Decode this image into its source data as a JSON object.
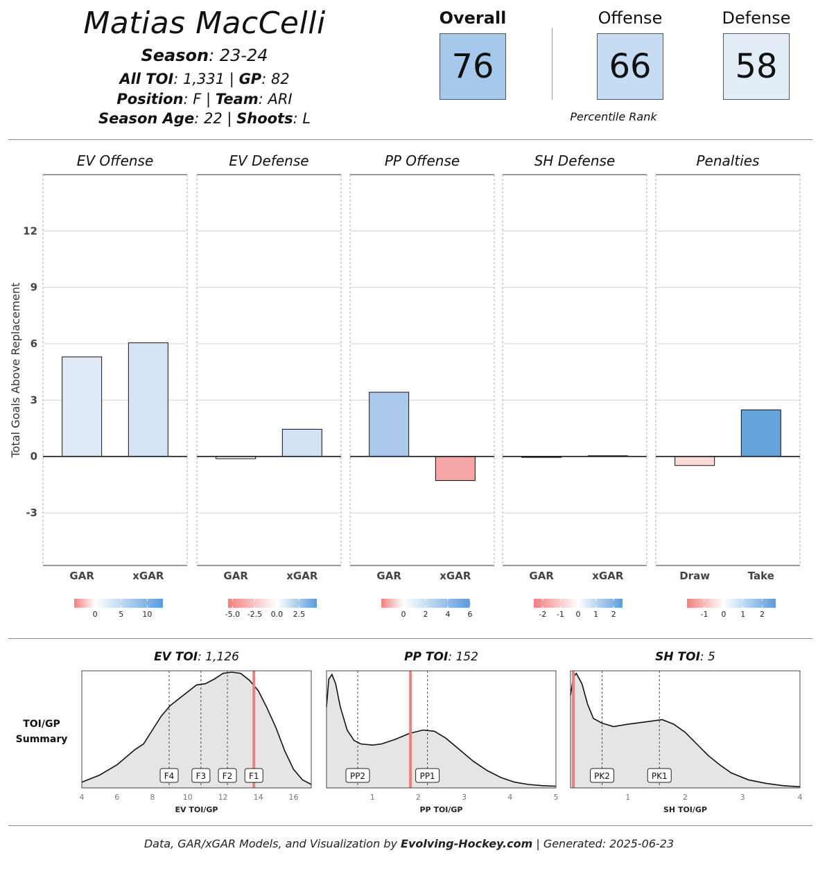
{
  "header": {
    "player_name": "Matias MacCelli",
    "season_label": "Season",
    "season_value": ": 23-24",
    "toi_label": "All TOI",
    "toi_value": ": 1,331 | ",
    "gp_label": "GP",
    "gp_value": ": 82",
    "position_label": "Position",
    "position_value": ": F | ",
    "team_label": "Team",
    "team_value": ": ARI",
    "age_label": "Season Age",
    "age_value": ": 22 | ",
    "shoots_label": "Shoots",
    "shoots_value": ": L"
  },
  "ranks": {
    "overall_label": "Overall",
    "overall_value": "76",
    "offense_label": "Offense",
    "offense_value": "66",
    "defense_label": "Defense",
    "defense_value": "58",
    "caption": "Percentile Rank",
    "colors": {
      "overall": "#a6c8ea",
      "offense": "#c5dcf2",
      "defense": "#e2edf8"
    }
  },
  "chart_data": [
    {
      "type": "bar",
      "ylabel": "Total Goals Above Replacement",
      "ylim": [
        -5.8,
        15
      ],
      "yticks": [
        -3,
        0,
        3,
        6,
        9,
        12
      ],
      "grid": true,
      "panels": [
        {
          "title": "EV Offense",
          "categories": [
            "GAR",
            "xGAR"
          ],
          "values": [
            5.3,
            6.05
          ],
          "colors": [
            "#e1ebf7",
            "#d5e3f5"
          ],
          "legend": {
            "ticks": [
              "0",
              "5",
              "10"
            ],
            "tick_values": [
              0,
              5,
              10
            ],
            "range": [
              -4,
              13
            ]
          }
        },
        {
          "title": "EV Defense",
          "categories": [
            "GAR",
            "xGAR"
          ],
          "values": [
            -0.12,
            1.45
          ],
          "colors": [
            "#fbf4f4",
            "#d3e2f5"
          ],
          "legend": {
            "ticks": [
              "-5.0",
              "-2.5",
              "0.0",
              "2.5"
            ],
            "tick_values": [
              -5,
              -2.5,
              0,
              2.5
            ],
            "range": [
              -5.5,
              4.5
            ]
          }
        },
        {
          "title": "PP Offense",
          "categories": [
            "GAR",
            "xGAR"
          ],
          "values": [
            3.42,
            -1.28
          ],
          "colors": [
            "#a9c8ea",
            "#f5a7a7"
          ],
          "legend": {
            "ticks": [
              "0",
              "2",
              "4",
              "6"
            ],
            "tick_values": [
              0,
              2,
              4,
              6
            ],
            "range": [
              -2,
              6
            ]
          }
        },
        {
          "title": "SH Defense",
          "categories": [
            "GAR",
            "xGAR"
          ],
          "values": [
            -0.05,
            0.04
          ],
          "colors": [
            "#fdfafa",
            "#f6f9fd"
          ],
          "legend": {
            "ticks": [
              "-2",
              "-1",
              "0",
              "1",
              "2"
            ],
            "tick_values": [
              -2,
              -1,
              0,
              1,
              2
            ],
            "range": [
              -2.5,
              2.5
            ]
          }
        },
        {
          "title": "Penalties",
          "categories": [
            "Draw",
            "Take"
          ],
          "values": [
            -0.48,
            2.48
          ],
          "colors": [
            "#fcdada",
            "#65a3da"
          ],
          "legend": {
            "ticks": [
              "-1",
              "0",
              "1",
              "2"
            ],
            "tick_values": [
              -1,
              0,
              1,
              2
            ],
            "range": [
              -1.9,
              2.7
            ]
          }
        }
      ]
    },
    {
      "type": "area",
      "side_label": [
        "TOI/GP",
        "Summary"
      ],
      "panels": [
        {
          "title_label": "EV TOI",
          "title_value": ": 1,126",
          "xlabel": "EV TOI/GP",
          "xlim": [
            4,
            17
          ],
          "xticks": [
            4,
            6,
            8,
            10,
            12,
            14,
            16
          ],
          "player_value": 13.75,
          "markers": [
            {
              "label": "F4",
              "x": 8.95
            },
            {
              "label": "F3",
              "x": 10.75
            },
            {
              "label": "F2",
              "x": 12.25
            },
            {
              "label": "F1",
              "x": 13.75
            }
          ],
          "density_x": [
            4,
            5,
            6,
            7,
            7.5,
            8,
            8.5,
            9,
            9.5,
            10,
            10.5,
            11,
            11.5,
            12,
            12.5,
            13,
            13.5,
            14,
            14.5,
            15,
            15.5,
            16,
            16.5,
            17
          ],
          "density_y": [
            0.05,
            0.11,
            0.2,
            0.33,
            0.38,
            0.5,
            0.62,
            0.71,
            0.77,
            0.83,
            0.89,
            0.9,
            0.94,
            0.99,
            1.0,
            0.99,
            0.93,
            0.84,
            0.69,
            0.52,
            0.32,
            0.16,
            0.07,
            0.03
          ]
        },
        {
          "title_label": "PP TOI",
          "title_value": ": 152",
          "xlabel": "PP TOI/GP",
          "xlim": [
            0,
            5
          ],
          "xticks": [
            1,
            2,
            3,
            4,
            5
          ],
          "player_value": 1.83,
          "markers": [
            {
              "label": "PP2",
              "x": 0.68
            },
            {
              "label": "PP1",
              "x": 2.2
            }
          ],
          "density_x": [
            0,
            0.05,
            0.12,
            0.2,
            0.3,
            0.45,
            0.6,
            0.75,
            1.0,
            1.2,
            1.5,
            1.8,
            2.1,
            2.35,
            2.6,
            2.9,
            3.2,
            3.5,
            3.8,
            4.1,
            4.4,
            4.7,
            5.0
          ],
          "density_y": [
            0.7,
            0.94,
            0.98,
            0.9,
            0.7,
            0.5,
            0.41,
            0.38,
            0.37,
            0.38,
            0.42,
            0.47,
            0.5,
            0.49,
            0.43,
            0.33,
            0.23,
            0.15,
            0.09,
            0.05,
            0.03,
            0.02,
            0.015
          ]
        },
        {
          "title_label": "SH TOI",
          "title_value": ": 5",
          "xlabel": "SH TOI/GP",
          "xlim": [
            0,
            4
          ],
          "xticks": [
            1,
            2,
            3,
            4
          ],
          "player_value": 0.05,
          "markers": [
            {
              "label": "PK2",
              "x": 0.55
            },
            {
              "label": "PK1",
              "x": 1.55
            }
          ],
          "density_x": [
            0,
            0.05,
            0.1,
            0.2,
            0.3,
            0.4,
            0.55,
            0.75,
            1.0,
            1.3,
            1.6,
            1.8,
            2.0,
            2.2,
            2.4,
            2.6,
            2.8,
            3.1,
            3.4,
            3.7,
            4.0
          ],
          "density_y": [
            0.8,
            0.96,
            0.99,
            0.9,
            0.72,
            0.6,
            0.56,
            0.53,
            0.55,
            0.57,
            0.59,
            0.55,
            0.48,
            0.38,
            0.28,
            0.2,
            0.13,
            0.07,
            0.04,
            0.02,
            0.01
          ]
        }
      ]
    }
  ],
  "footer": {
    "prefix": "Data, GAR/xGAR Models, and Visualization by ",
    "brand": "Evolving-Hockey.com",
    "suffix": " | Generated: 2025-06-23"
  },
  "colors": {
    "neg": "#f08080",
    "pos": "#5c9cdb",
    "player_line": "#ef7f7f",
    "fill": "#e5e5e5"
  }
}
